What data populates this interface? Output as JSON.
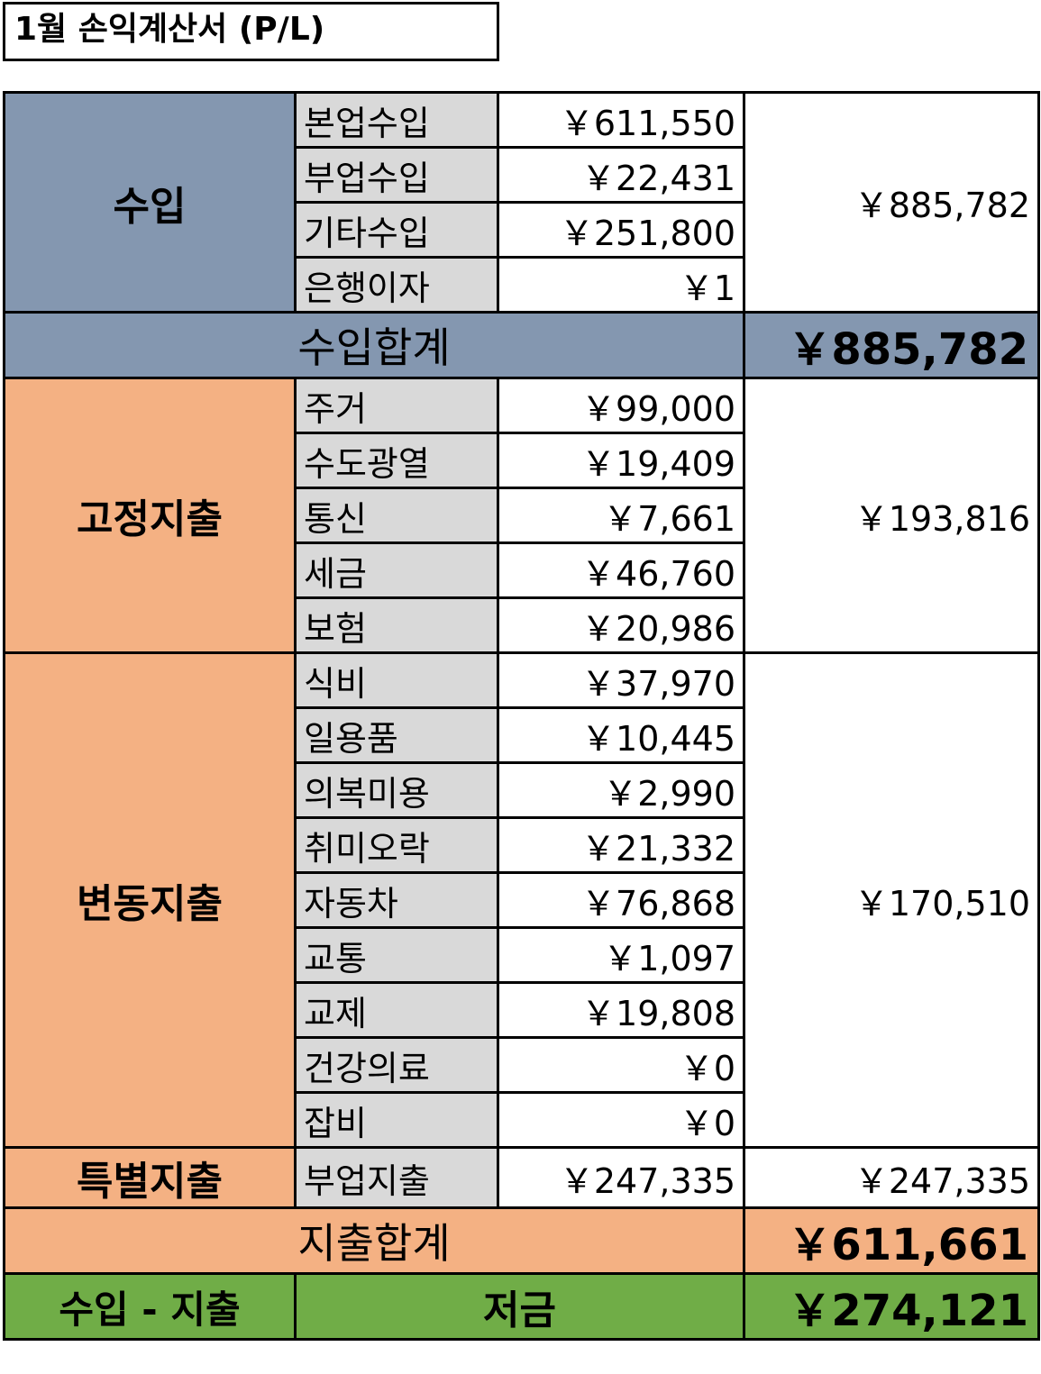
{
  "title": "1월 손익계산서 (P/L)",
  "colors": {
    "income": "#8497b0",
    "expense": "#f4b183",
    "item": "#d9d9d9",
    "net": "#70ad47"
  },
  "groups": [
    {
      "key": "income",
      "label": "수입",
      "color": "blue",
      "subtotal": "￥885,782",
      "items": [
        {
          "label": "본업수입",
          "value": "￥611,550"
        },
        {
          "label": "부업수입",
          "value": "￥22,431"
        },
        {
          "label": "기타수입",
          "value": "￥251,800"
        },
        {
          "label": "은행이자",
          "value": "￥1"
        }
      ]
    },
    {
      "key": "income-total",
      "total": true,
      "label": "수입합계",
      "color": "blue",
      "value": "￥885,782"
    },
    {
      "key": "fixed",
      "label": "고정지출",
      "color": "orange",
      "subtotal": "￥193,816",
      "items": [
        {
          "label": "주거",
          "value": "￥99,000"
        },
        {
          "label": "수도광열",
          "value": "￥19,409"
        },
        {
          "label": "통신",
          "value": "￥7,661"
        },
        {
          "label": "세금",
          "value": "￥46,760"
        },
        {
          "label": "보험",
          "value": "￥20,986"
        }
      ]
    },
    {
      "key": "variable",
      "label": "변동지출",
      "color": "orange",
      "subtotal": "￥170,510",
      "items": [
        {
          "label": "식비",
          "value": "￥37,970"
        },
        {
          "label": "일용품",
          "value": "￥10,445"
        },
        {
          "label": "의복미용",
          "value": "￥2,990"
        },
        {
          "label": "취미오락",
          "value": "￥21,332"
        },
        {
          "label": "자동차",
          "value": "￥76,868"
        },
        {
          "label": "교통",
          "value": "￥1,097"
        },
        {
          "label": "교제",
          "value": "￥19,808"
        },
        {
          "label": "건강의료",
          "value": "￥0"
        },
        {
          "label": "잡비",
          "value": "￥0"
        }
      ]
    },
    {
      "key": "special",
      "label": "특별지출",
      "color": "orange",
      "subtotal": "￥247,335",
      "items": [
        {
          "label": "부업지출",
          "value": "￥247,335"
        }
      ]
    },
    {
      "key": "expense-total",
      "total": true,
      "label": "지출합계",
      "color": "orange",
      "value": "￥611,661"
    }
  ],
  "net": {
    "label": "수입 - 지출",
    "name": "저금",
    "value": "￥274,121"
  }
}
